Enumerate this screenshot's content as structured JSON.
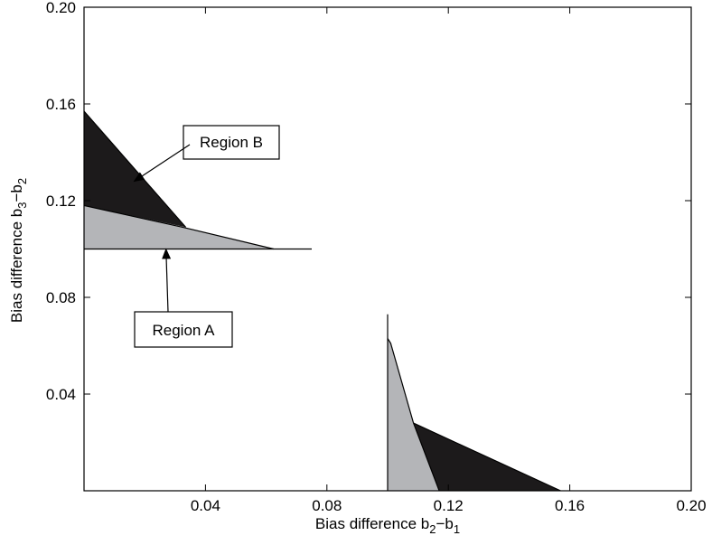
{
  "chart_data": {
    "type": "area",
    "xlabel": {
      "base": "Bias difference b",
      "sub1": "2",
      "mid": "−b",
      "sub2": "1"
    },
    "ylabel": {
      "base": "Bias difference b",
      "sub1": "3",
      "mid": "−b",
      "sub2": "2"
    },
    "xlim": [
      0,
      0.2
    ],
    "ylim": [
      0,
      0.2
    ],
    "x_ticks": [
      {
        "value": 0.04,
        "label": "0.04"
      },
      {
        "value": 0.08,
        "label": "0.08"
      },
      {
        "value": 0.12,
        "label": "0.12"
      },
      {
        "value": 0.16,
        "label": "0.16"
      },
      {
        "value": 0.2,
        "label": "0.20"
      }
    ],
    "y_ticks": [
      {
        "value": 0.04,
        "label": "0.04"
      },
      {
        "value": 0.08,
        "label": "0.08"
      },
      {
        "value": 0.12,
        "label": "0.12"
      },
      {
        "value": 0.16,
        "label": "0.16"
      },
      {
        "value": 0.2,
        "label": "0.20"
      }
    ],
    "grid": false,
    "colors": {
      "region_a": "#b4b5b8",
      "region_b": "#1c1a1b",
      "axis": "#000000"
    },
    "regions": [
      {
        "name": "Region A",
        "color_key": "region_a",
        "polygons": [
          [
            [
              0.0,
              0.1
            ],
            [
              0.0,
              0.118
            ],
            [
              0.0325,
              0.109
            ],
            [
              0.0625,
              0.1
            ]
          ],
          [
            [
              0.1,
              0.0
            ],
            [
              0.1,
              0.063
            ],
            [
              0.101,
              0.061
            ],
            [
              0.1085,
              0.028
            ],
            [
              0.117,
              0.0
            ]
          ]
        ]
      },
      {
        "name": "Region B",
        "color_key": "region_b",
        "polygons": [
          [
            [
              0.0,
              0.118
            ],
            [
              0.0,
              0.157
            ],
            [
              0.0335,
              0.109
            ]
          ],
          [
            [
              0.1085,
              0.028
            ],
            [
              0.117,
              0.0
            ],
            [
              0.157,
              0.0
            ]
          ]
        ]
      }
    ],
    "lines": [
      {
        "points": [
          [
            0.0,
            0.1
          ],
          [
            0.075,
            0.1
          ]
        ]
      },
      {
        "points": [
          [
            0.1,
            0.0
          ],
          [
            0.1,
            0.073
          ]
        ]
      },
      {
        "points": [
          [
            0.1,
            0.063
          ],
          [
            0.101,
            0.061
          ],
          [
            0.1085,
            0.028
          ],
          [
            0.117,
            0.0
          ]
        ]
      },
      {
        "points": [
          [
            0.0,
            0.157
          ],
          [
            0.0335,
            0.109
          ]
        ]
      },
      {
        "points": [
          [
            0.0,
            0.118
          ],
          [
            0.0325,
            0.109
          ],
          [
            0.0625,
            0.1
          ]
        ]
      },
      {
        "points": [
          [
            0.1085,
            0.028
          ],
          [
            0.157,
            0.0
          ]
        ]
      }
    ],
    "annotations": [
      {
        "text": "Region B",
        "arrow_to": [
          0.0165,
          0.128
        ]
      },
      {
        "text": "Region A",
        "arrow_to": [
          0.027,
          0.1
        ]
      }
    ]
  }
}
